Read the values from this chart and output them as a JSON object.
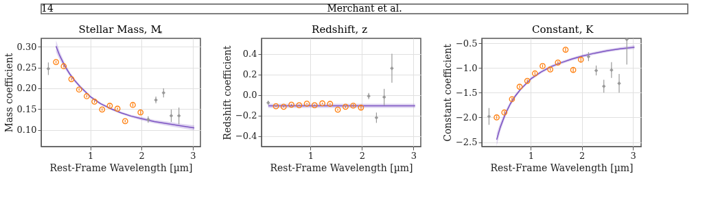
{
  "chart_data": [
    {
      "type": "scatter",
      "title": "Stellar Mass, M$_{*}$",
      "xlabel": "Rest-Frame Wavelength [µm]",
      "ylabel": "Mass coefficient",
      "annotations": [
        "14",
        "Merchant et al."
      ],
      "grid": true,
      "xlim": [
        0.04,
        3.15
      ],
      "xticks": [
        1,
        2,
        3
      ],
      "ylim": [
        0.06,
        0.32
      ],
      "yticks": [
        {
          "value": 0.1,
          "label": "0.10"
        },
        {
          "value": 0.15,
          "label": "0.15"
        },
        {
          "value": 0.2,
          "label": "0.20"
        },
        {
          "value": 0.25,
          "label": "0.25"
        },
        {
          "value": 0.3,
          "label": "0.30"
        }
      ],
      "series": [
        {
          "type": "line",
          "color": "#7b52c2",
          "x": [
            0.33,
            0.4,
            0.5,
            0.6,
            0.7,
            0.8,
            1.0,
            1.2,
            1.4,
            1.6,
            1.8,
            2.0,
            2.25,
            2.5,
            2.75,
            3.03
          ],
          "values": [
            0.301,
            0.279,
            0.254,
            0.234,
            0.218,
            0.204,
            0.18,
            0.163,
            0.151,
            0.141,
            0.133,
            0.127,
            0.12,
            0.115,
            0.11,
            0.105
          ],
          "lower": [
            0.287,
            0.269,
            0.247,
            0.229,
            0.214,
            0.2,
            0.177,
            0.16,
            0.148,
            0.138,
            0.13,
            0.123,
            0.116,
            0.11,
            0.105,
            0.099
          ],
          "upper": [
            0.315,
            0.289,
            0.261,
            0.239,
            0.222,
            0.208,
            0.183,
            0.166,
            0.154,
            0.144,
            0.136,
            0.131,
            0.124,
            0.12,
            0.115,
            0.111
          ]
        },
        {
          "type": "scatter",
          "color": "#ff7f0e",
          "marker": "circle",
          "x": [
            0.33,
            0.48,
            0.63,
            0.78,
            0.93,
            1.08,
            1.23,
            1.38,
            1.53,
            1.68,
            1.83,
            1.98
          ],
          "values": [
            0.263,
            0.253,
            0.222,
            0.197,
            0.181,
            0.168,
            0.149,
            0.158,
            0.151,
            0.121,
            0.16,
            0.142
          ],
          "errors": [
            0.003,
            0.003,
            0.003,
            0.003,
            0.003,
            0.003,
            0.003,
            0.003,
            0.003,
            0.003,
            0.004,
            0.005
          ]
        },
        {
          "type": "scatter",
          "color": "#999999",
          "marker": "diamond",
          "x": [
            0.18,
            2.13,
            2.28,
            2.43,
            2.58,
            2.73
          ],
          "values": [
            0.247,
            0.125,
            0.172,
            0.189,
            0.134,
            0.134
          ],
          "errors": [
            0.015,
            0.008,
            0.008,
            0.011,
            0.015,
            0.02
          ]
        }
      ]
    },
    {
      "type": "scatter",
      "title": "Redshift, z",
      "xlabel": "Rest-Frame Wavelength [µm]",
      "ylabel": "Redshift coefficient",
      "grid": true,
      "xlim": [
        0.05,
        3.14
      ],
      "xticks": [
        1,
        2,
        3
      ],
      "ylim": [
        -0.5,
        0.55
      ],
      "yticks": [
        {
          "value": -0.4,
          "label": "−0.4"
        },
        {
          "value": -0.2,
          "label": "−0.2"
        },
        {
          "value": 0,
          "label": "0.0"
        },
        {
          "value": 0.2,
          "label": "0.2"
        },
        {
          "value": 0.4,
          "label": "0.4"
        }
      ],
      "series": [
        {
          "type": "line",
          "color": "#7b52c2",
          "x": [
            0.18,
            3.03
          ],
          "values": [
            -0.105,
            -0.105
          ],
          "lower": [
            -0.125,
            -0.125
          ],
          "upper": [
            -0.085,
            -0.085
          ]
        },
        {
          "type": "scatter",
          "color": "#ff7f0e",
          "marker": "circle",
          "x": [
            0.33,
            0.48,
            0.63,
            0.78,
            0.93,
            1.08,
            1.23,
            1.38,
            1.53,
            1.68,
            1.83,
            1.98
          ],
          "values": [
            -0.109,
            -0.114,
            -0.094,
            -0.099,
            -0.084,
            -0.099,
            -0.081,
            -0.086,
            -0.142,
            -0.114,
            -0.103,
            -0.122
          ],
          "errors": [
            0.008,
            0.008,
            0.008,
            0.008,
            0.008,
            0.008,
            0.008,
            0.008,
            0.01,
            0.012,
            0.015,
            0.02
          ]
        },
        {
          "type": "scatter",
          "color": "#999999",
          "marker": "diamond",
          "x": [
            0.18,
            2.13,
            2.28,
            2.43,
            2.58
          ],
          "values": [
            -0.075,
            -0.01,
            -0.22,
            -0.02,
            0.26
          ],
          "errors": [
            0.02,
            0.03,
            0.05,
            0.08,
            0.14
          ]
        }
      ]
    },
    {
      "type": "scatter",
      "title": "Constant, K",
      "xlabel": "Rest-Frame Wavelength [µm]",
      "ylabel": "Constant coefficient",
      "grid": true,
      "xlim": [
        0.04,
        3.16
      ],
      "xticks": [
        1,
        2,
        3
      ],
      "ylim": [
        -2.59,
        -0.4
      ],
      "yticks": [
        {
          "value": -2.5,
          "label": "−2.5"
        },
        {
          "value": -2.0,
          "label": "−2.0"
        },
        {
          "value": -1.5,
          "label": "−1.5"
        },
        {
          "value": -1.0,
          "label": "−1.0"
        },
        {
          "value": -0.5,
          "label": "−0.5"
        }
      ],
      "series": [
        {
          "type": "line",
          "color": "#7b52c2",
          "x": [
            0.33,
            0.4,
            0.5,
            0.6,
            0.7,
            0.8,
            1.0,
            1.2,
            1.4,
            1.6,
            1.8,
            2.0,
            2.25,
            2.5,
            2.75,
            3.03
          ],
          "values": [
            -2.45,
            -2.2,
            -1.93,
            -1.72,
            -1.56,
            -1.43,
            -1.22,
            -1.08,
            -0.97,
            -0.89,
            -0.82,
            -0.76,
            -0.7,
            -0.65,
            -0.61,
            -0.58
          ],
          "lower": [
            -2.58,
            -2.29,
            -1.99,
            -1.77,
            -1.6,
            -1.46,
            -1.25,
            -1.11,
            -1.0,
            -0.92,
            -0.85,
            -0.79,
            -0.73,
            -0.68,
            -0.64,
            -0.62
          ],
          "upper": [
            -2.32,
            -2.11,
            -1.87,
            -1.67,
            -1.52,
            -1.4,
            -1.19,
            -1.05,
            -0.94,
            -0.86,
            -0.79,
            -0.73,
            -0.67,
            -0.62,
            -0.58,
            -0.54
          ]
        },
        {
          "type": "scatter",
          "color": "#ff7f0e",
          "marker": "circle",
          "x": [
            0.33,
            0.48,
            0.63,
            0.78,
            0.93,
            1.08,
            1.23,
            1.38,
            1.53,
            1.68,
            1.83,
            1.98
          ],
          "values": [
            -2.0,
            -1.9,
            -1.63,
            -1.38,
            -1.26,
            -1.11,
            -0.96,
            -1.03,
            -0.89,
            -0.63,
            -1.04,
            -0.83
          ],
          "errors": [
            0.03,
            0.03,
            0.03,
            0.03,
            0.03,
            0.03,
            0.03,
            0.03,
            0.03,
            0.04,
            0.05,
            0.06
          ]
        },
        {
          "type": "scatter",
          "color": "#999999",
          "marker": "diamond",
          "x": [
            0.18,
            2.13,
            2.28,
            2.43,
            2.58,
            2.73,
            2.88
          ],
          "values": [
            -1.98,
            -0.77,
            -1.05,
            -1.37,
            -1.04,
            -1.31,
            -0.42
          ],
          "errors": [
            0.17,
            0.09,
            0.1,
            0.13,
            0.16,
            0.19,
            [
              -0.93,
              -0.4
            ]
          ]
        }
      ]
    }
  ]
}
